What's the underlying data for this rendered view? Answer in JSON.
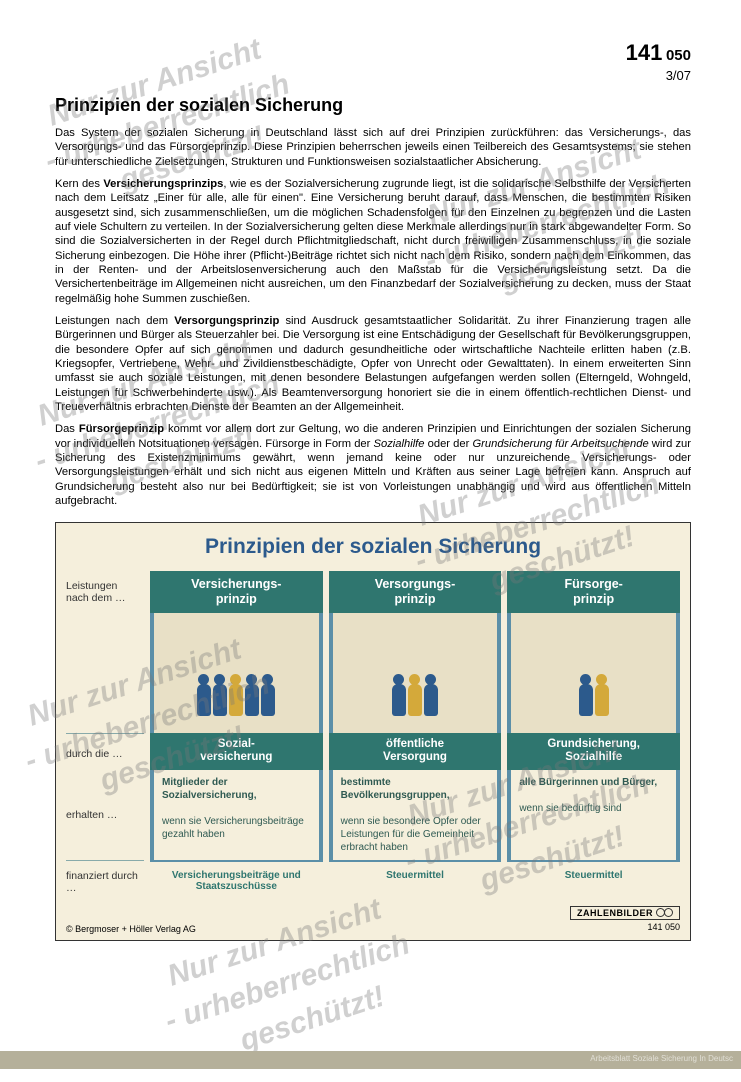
{
  "header": {
    "page_big": "141",
    "page_mid": "050",
    "date": "3/07"
  },
  "title": "Prinzipien der sozialen Sicherung",
  "paragraphs": {
    "p1": "Das System der sozialen Sicherung in Deutschland lässt sich auf drei Prinzipien zurückführen: das Versicherungs-, das Versorgungs- und das Fürsorgeprinzip. Diese Prinzipien beherrschen jeweils einen Teilbereich des Gesamtsystems; sie stehen für unterschiedliche Zielsetzungen, Strukturen und Funktionsweisen sozialstaatlicher Absicherung.",
    "p2a": "Kern des ",
    "p2b": "Versicherungsprinzips",
    "p2c": ", wie es der Sozialversicherung zugrunde liegt, ist die solidarische Selbsthilfe der Versicherten nach dem Leitsatz „Einer für alle, alle für einen\". Eine Versicherung beruht darauf, dass Menschen, die bestimmten Risiken ausgesetzt sind, sich zusammenschließen, um die möglichen Schadensfolgen für den Einzelnen zu begrenzen und die Lasten auf viele Schultern zu verteilen. In der Sozialversicherung gelten diese Merkmale allerdings nur in stark abgewandelter Form. So sind die Sozialversicherten in der Regel durch Pflichtmitgliedschaft, nicht durch freiwilligen Zusammenschluss, in die soziale Sicherung einbezogen. Die Höhe ihrer (Pflicht-)Beiträge richtet sich nicht nach dem Risiko, sondern nach dem Einkommen, das in der Renten- und der Arbeitslosenversicherung auch den Maßstab für die Versicherungsleistung setzt. Da die Versichertenbeiträge im Allgemeinen nicht ausreichen, um den Finanzbedarf der Sozialversicherung zu decken, muss der Staat regelmäßig hohe Summen zuschießen.",
    "p3a": "Leistungen nach dem ",
    "p3b": "Versorgungsprinzip",
    "p3c": " sind Ausdruck gesamtstaatlicher Solidarität. Zu ihrer Finanzierung tragen alle Bürgerinnen und Bürger als Steuerzahler bei. Die Versorgung ist eine Entschädigung der Gesellschaft für Bevölkerungsgruppen, die besondere Opfer auf sich genommen und dadurch gesundheitliche oder wirtschaftliche Nachteile erlitten haben (z.B. Kriegsopfer, Vertriebene, Wehr- und Zivildienstbeschädigte, Opfer von Unrecht oder Gewalttaten). In einem erweiterten Sinn umfasst sie auch soziale Leistungen, mit denen besondere Belastungen aufgefangen werden sollen (Elterngeld, Wohngeld, Leistungen für Schwerbehinderte usw.). Als Beamtenversorgung honoriert sie die in einem öffentlich-rechtlichen Dienst- und Treueverhältnis erbrachten Dienste der Beamten an der Allgemeinheit.",
    "p4a": "Das ",
    "p4b": "Fürsorgeprinzip",
    "p4c": " kommt vor allem dort zur Geltung, wo die anderen Prinzipien und Einrichtungen der sozialen Sicherung vor individuellen Notsituationen versagen. Fürsorge in Form der ",
    "p4d": "Sozialhilfe",
    "p4e": " oder der ",
    "p4f": "Grundsicherung für Arbeitsuchende",
    "p4g": " wird zur Sicherung des Existenzminimums gewährt, wenn jemand keine oder nur unzureichende Versicherungs- oder Versorgungsleistungen erhält und sich nicht aus eigenen Mitteln und Kräften aus seiner Lage befreien kann. Anspruch auf Grundsicherung besteht also nur bei Bedürftigkeit; sie ist von Vorleistungen unabhängig und wird aus öffentlichen Mitteln aufgebracht."
  },
  "infographic": {
    "title": "Prinzipien der sozialen Sicherung",
    "row_labels": {
      "r1": "Leistungen nach dem …",
      "r2": "durch die …",
      "r3": "erhalten …",
      "r4": "finanziert durch …"
    },
    "cols": [
      {
        "head": "Versicherungs-\nprinzip",
        "sub": "Sozial-\nversicherung",
        "receive_strong": "Mitglieder der Sozialversicherung,",
        "receive_cond": "wenn sie Versicherungsbeiträge gezahlt haben",
        "fund": "Versicherungsbeiträge und Staatszuschüsse",
        "figures": 5
      },
      {
        "head": "Versorgungs-\nprinzip",
        "sub": "öffentliche\nVersorgung",
        "receive_strong": "bestimmte Bevölkerungsgruppen,",
        "receive_cond": "wenn sie besondere Opfer oder Leistungen für die Gemeinheit erbracht haben",
        "fund": "Steuermittel",
        "figures": 3
      },
      {
        "head": "Fürsorge-\nprinzip",
        "sub": "Grundsicherung,\nSozialhilfe",
        "receive_strong": "alle Bürgerinnen und Bürger,",
        "receive_cond": "wenn sie bedürftig sind",
        "fund": "Steuermittel",
        "figures": 2
      }
    ],
    "brand": "ZAHLENBILDER",
    "code": "141 050",
    "copyright": "© Bergmoser + Höller Verlag AG"
  },
  "watermark": {
    "line1": "Nur zur Ansicht",
    "line2": "- urheberrechtlich",
    "line3": "geschützt!"
  },
  "colors": {
    "teal": "#2f766f",
    "blue": "#2c5a8c",
    "beige": "#f5efdc",
    "pillar": "#5b8fa8"
  }
}
